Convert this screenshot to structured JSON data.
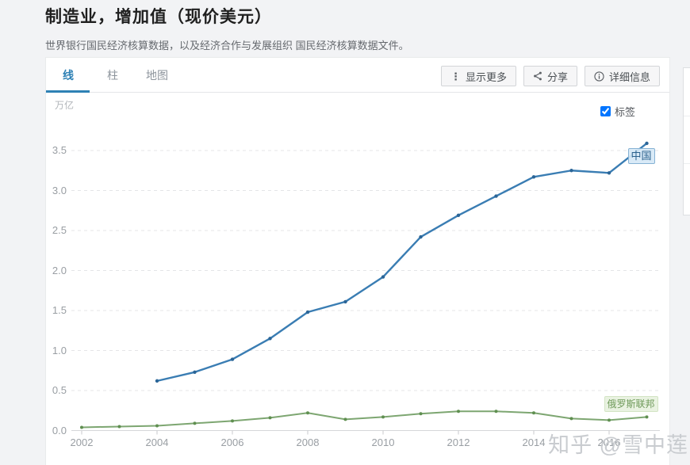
{
  "page": {
    "title": "制造业，增加值（现价美元）",
    "subtitle": "世界银行国民经济核算数据，以及经济合作与发展组织 国民经济核算数据文件。",
    "watermark": "知乎 @雪中莲"
  },
  "tabs": [
    {
      "label": "线",
      "active": true
    },
    {
      "label": "柱",
      "active": false
    },
    {
      "label": "地图",
      "active": false
    }
  ],
  "toolbar": {
    "more_label": "显示更多",
    "share_label": "分享",
    "details_label": "详细信息"
  },
  "chart_controls": {
    "unit_label": "万亿",
    "labels_checkbox": {
      "label": "标签",
      "checked": true
    }
  },
  "colors": {
    "accent_blue": "#2e81b5",
    "page_background": "#f2f3f5",
    "grid_line": "#e4e5e7",
    "axis_line": "#d6d7d9",
    "tick_text": "#999ea3"
  },
  "chart_data": {
    "type": "line",
    "title": "制造业，增加值（现价美元）",
    "ylabel": "万亿",
    "xlabel": "",
    "ylim": [
      0,
      3.7
    ],
    "xlim": [
      2002,
      2017.6
    ],
    "grid": "horizontal-dashed",
    "legend_position": "inline-end-labels",
    "y_ticks": [
      "0.0",
      "0.5",
      "1.0",
      "1.5",
      "2.0",
      "2.5",
      "3.0",
      "3.5"
    ],
    "x_ticks": [
      2002,
      2004,
      2006,
      2008,
      2010,
      2012,
      2014,
      2016
    ],
    "series": [
      {
        "name": "中国",
        "color": "#3a7db3",
        "dot_color": "#2b6597",
        "x": [
          2004,
          2005,
          2006,
          2007,
          2008,
          2009,
          2010,
          2011,
          2012,
          2013,
          2014,
          2015,
          2016,
          2017
        ],
        "values": [
          0.62,
          0.73,
          0.89,
          1.15,
          1.48,
          1.61,
          1.92,
          2.42,
          2.69,
          2.93,
          3.17,
          3.25,
          3.22,
          3.59
        ]
      },
      {
        "name": "俄罗斯联邦",
        "color": "#7da671",
        "dot_color": "#5f8f50",
        "x": [
          2002,
          2003,
          2004,
          2005,
          2006,
          2007,
          2008,
          2009,
          2010,
          2011,
          2012,
          2013,
          2014,
          2015,
          2016,
          2017
        ],
        "values": [
          0.04,
          0.05,
          0.06,
          0.09,
          0.12,
          0.16,
          0.22,
          0.14,
          0.17,
          0.21,
          0.24,
          0.24,
          0.22,
          0.15,
          0.13,
          0.17
        ]
      }
    ]
  }
}
